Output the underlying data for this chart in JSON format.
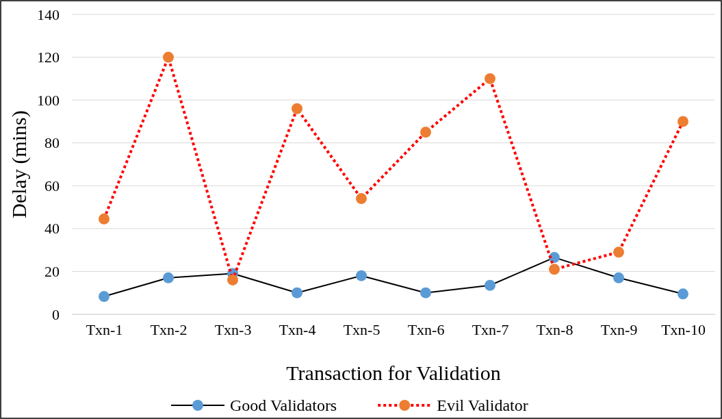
{
  "chart_data": {
    "type": "line",
    "xlabel": "Transaction for Validation",
    "ylabel": "Delay (mins)",
    "categories": [
      "Txn-1",
      "Txn-2",
      "Txn-3",
      "Txn-4",
      "Txn-5",
      "Txn-6",
      "Txn-7",
      "Txn-8",
      "Txn-9",
      "Txn-10"
    ],
    "ylim": [
      0,
      140
    ],
    "yticks": [
      0,
      20,
      40,
      60,
      80,
      100,
      120,
      140
    ],
    "grid": "y",
    "legend": "bottom",
    "marker": "circle",
    "series": [
      {
        "name": "Good Validators",
        "color": "#000000",
        "line_style": "solid",
        "colors": [
          "#5b9bd5",
          "#5b9bd5",
          "#5b9bd5",
          "#5b9bd5",
          "#5b9bd5",
          "#5b9bd5",
          "#5b9bd5",
          "#5b9bd5",
          "#5b9bd5",
          "#5b9bd5"
        ],
        "values": [
          8.3,
          17,
          19,
          10,
          18,
          10,
          13.5,
          26.5,
          17,
          9.5
        ]
      },
      {
        "name": "Evil Validator",
        "color": "#ff0000",
        "line_style": "dotted",
        "colors": [
          "#ed7d31",
          "#ed7d31",
          "#ed7d31",
          "#ed7d31",
          "#ed7d31",
          "#ed7d31",
          "#ed7d31",
          "#ed7d31",
          "#ed7d31",
          "#ed7d31"
        ],
        "values": [
          44.5,
          120,
          16,
          96,
          54,
          85,
          110,
          21,
          29,
          90
        ]
      }
    ]
  }
}
